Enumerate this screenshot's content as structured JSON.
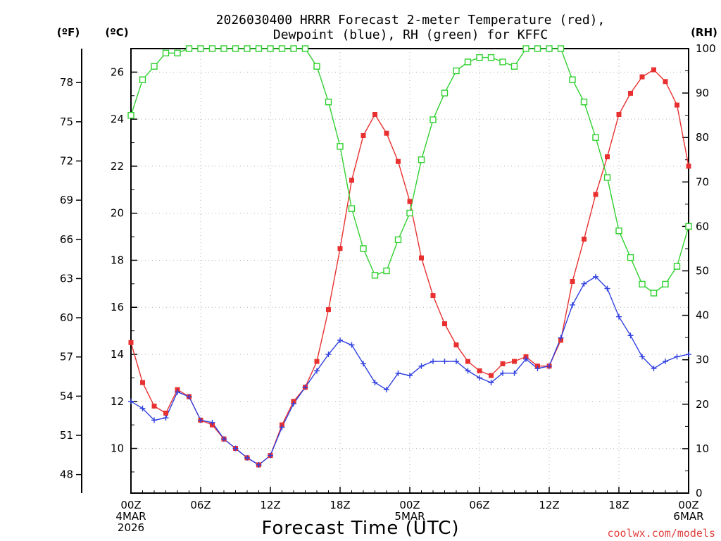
{
  "chart_data": {
    "type": "line",
    "title": "2026030400 HRRR Forecast 2-meter Temperature (red),",
    "subtitle": "Dewpoint (blue), RH (green) for KFFC",
    "xlabel": "Forecast Time (UTC)",
    "credit": "coolwx.com/models",
    "units": {
      "fahrenheit": "(ºF)",
      "celsius": "(ºC)",
      "rh": "(RH)"
    },
    "x": [
      0,
      1,
      2,
      3,
      4,
      5,
      6,
      7,
      8,
      9,
      10,
      11,
      12,
      13,
      14,
      15,
      16,
      17,
      18,
      19,
      20,
      21,
      22,
      23,
      24,
      25,
      26,
      27,
      28,
      29,
      30,
      31,
      32,
      33,
      34,
      35,
      36,
      37,
      38,
      39,
      40,
      41,
      42,
      43,
      44,
      45,
      46,
      47,
      48
    ],
    "xlim": [
      0,
      48
    ],
    "x_ticks": [
      {
        "x": 0,
        "lines": [
          "00Z",
          "4MAR",
          "2026"
        ]
      },
      {
        "x": 6,
        "lines": [
          "06Z"
        ]
      },
      {
        "x": 12,
        "lines": [
          "12Z"
        ]
      },
      {
        "x": 18,
        "lines": [
          "18Z"
        ]
      },
      {
        "x": 24,
        "lines": [
          "00Z",
          "5MAR"
        ]
      },
      {
        "x": 30,
        "lines": [
          "06Z"
        ]
      },
      {
        "x": 36,
        "lines": [
          "12Z"
        ]
      },
      {
        "x": 42,
        "lines": [
          "18Z"
        ]
      },
      {
        "x": 48,
        "lines": [
          "00Z",
          "6MAR"
        ]
      }
    ],
    "y_celsius": {
      "lim": [
        8.1,
        27
      ],
      "ticks": [
        10,
        12,
        14,
        16,
        18,
        20,
        22,
        24,
        26
      ]
    },
    "y_fahrenheit": {
      "ticks": [
        48,
        51,
        54,
        57,
        60,
        63,
        66,
        69,
        72,
        75,
        78
      ]
    },
    "y_rh": {
      "lim": [
        0,
        100
      ],
      "ticks": [
        0,
        10,
        20,
        30,
        40,
        50,
        60,
        70,
        80,
        90,
        100
      ]
    },
    "grid": true,
    "series": [
      {
        "name": "Temperature",
        "axis": "celsius",
        "color": "#e83030",
        "marker": "filled-square",
        "values": [
          14.5,
          12.8,
          11.8,
          11.5,
          12.5,
          12.2,
          11.2,
          11.0,
          10.4,
          10.0,
          9.6,
          9.3,
          9.7,
          11.0,
          12.0,
          12.6,
          13.7,
          15.9,
          18.5,
          21.4,
          23.3,
          24.2,
          23.4,
          22.2,
          20.5,
          18.1,
          16.5,
          15.3,
          14.4,
          13.7,
          13.3,
          13.1,
          13.6,
          13.7,
          13.9,
          13.5,
          13.5,
          14.6,
          17.1,
          18.9,
          20.8,
          22.4,
          24.2,
          25.1,
          25.8,
          26.1,
          25.6,
          24.6,
          22.0
        ]
      },
      {
        "name": "Dewpoint",
        "axis": "celsius",
        "color": "#3040e0",
        "marker": "plus",
        "values": [
          12.0,
          11.7,
          11.2,
          11.3,
          12.4,
          12.2,
          11.2,
          11.1,
          10.4,
          10.0,
          9.6,
          9.3,
          9.7,
          10.9,
          11.9,
          12.6,
          13.3,
          14.0,
          14.6,
          14.4,
          13.6,
          12.8,
          12.5,
          13.2,
          13.1,
          13.5,
          13.7,
          13.7,
          13.7,
          13.3,
          13.0,
          12.8,
          13.2,
          13.2,
          13.8,
          13.4,
          13.5,
          14.7,
          16.1,
          17.0,
          17.3,
          16.8,
          15.6,
          14.8,
          13.9,
          13.4,
          13.7,
          13.9,
          14.0
        ]
      },
      {
        "name": "RH",
        "axis": "rh",
        "color": "#30d030",
        "marker": "open-square",
        "values": [
          85,
          93,
          96,
          99,
          99,
          100,
          100,
          100,
          100,
          100,
          100,
          100,
          100,
          100,
          100,
          100,
          96,
          88,
          78,
          64,
          55,
          49,
          50,
          57,
          63,
          75,
          84,
          90,
          95,
          97,
          98,
          98,
          97,
          96,
          100,
          100,
          100,
          100,
          93,
          88,
          80,
          71,
          59,
          53,
          47,
          45,
          47,
          51,
          60
        ]
      }
    ]
  }
}
